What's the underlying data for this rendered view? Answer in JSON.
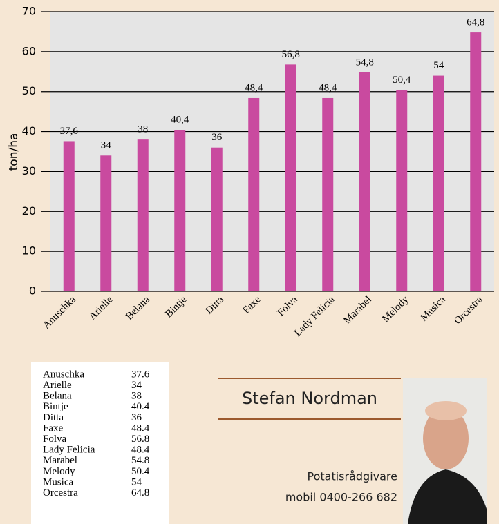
{
  "chart_data": {
    "type": "bar",
    "y_label": "ton/ha",
    "categories": [
      "Anuschka",
      "Arielle",
      "Belana",
      "Bintje",
      "Ditta",
      "Faxe",
      "Folva",
      "Lady Felicia",
      "Marabel",
      "Melody",
      "Musica",
      "Orcestra"
    ],
    "values": [
      37.6,
      34,
      38,
      40.4,
      36,
      48.4,
      56.8,
      48.4,
      54.8,
      50.4,
      54,
      64.8
    ],
    "value_labels": [
      "37,6",
      "34",
      "38",
      "40,4",
      "36",
      "48,4",
      "56,8",
      "48,4",
      "54,8",
      "50,4",
      "54",
      "64,8"
    ],
    "color": "#c94a9f",
    "ylim": [
      0,
      70
    ],
    "yticks": [
      0,
      10,
      20,
      30,
      40,
      50,
      60,
      70
    ],
    "grid": true
  },
  "table": {
    "rows": [
      [
        "Anuschka",
        37.6
      ],
      [
        "Arielle",
        34
      ],
      [
        "Belana",
        38
      ],
      [
        "Bintje",
        40.4
      ],
      [
        "Ditta",
        36
      ],
      [
        "Faxe",
        48.4
      ],
      [
        "Folva",
        56.8
      ],
      [
        "Lady Felicia",
        48.4
      ],
      [
        "Marabel",
        54.8
      ],
      [
        "Melody",
        50.4
      ],
      [
        "Musica",
        54
      ],
      [
        "Orcestra",
        64.8
      ]
    ]
  },
  "contact": {
    "name": "Stefan Nordman",
    "title": "Potatisrådgivare",
    "phone": "mobil 0400-266 682"
  }
}
